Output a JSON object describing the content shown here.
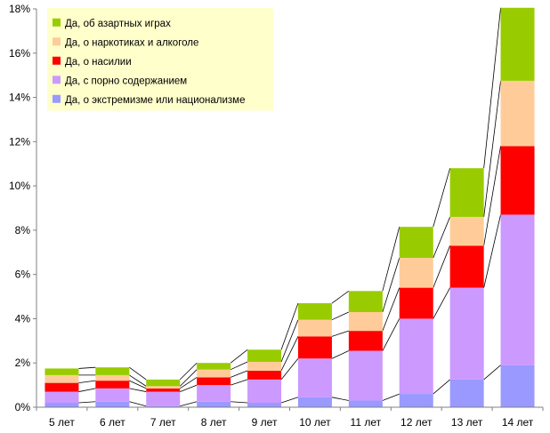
{
  "chart_data": {
    "type": "bar",
    "stacked": true,
    "categories": [
      "5 лет",
      "6 лет",
      "7 лет",
      "8 лет",
      "9 лет",
      "10 лет",
      "11 лет",
      "12 лет",
      "13 лет",
      "14 лет"
    ],
    "series": [
      {
        "name": "Да, о экстремизме или национализме",
        "color": "#9999ff",
        "values": [
          0.2,
          0.25,
          0.05,
          0.25,
          0.2,
          0.45,
          0.3,
          0.6,
          1.25,
          1.9
        ]
      },
      {
        "name": "Да, с порно содержанием",
        "color": "#cc99ff",
        "values": [
          0.5,
          0.6,
          0.65,
          0.75,
          1.05,
          1.75,
          2.25,
          3.4,
          4.15,
          6.8
        ]
      },
      {
        "name": "Да, о насилии",
        "color": "#ff0000",
        "values": [
          0.4,
          0.35,
          0.15,
          0.35,
          0.4,
          1.0,
          0.9,
          1.4,
          1.9,
          3.1
        ]
      },
      {
        "name": "Да, о наркотиках и алкоголе",
        "color": "#ffcc99",
        "values": [
          0.35,
          0.25,
          0.1,
          0.35,
          0.4,
          0.75,
          0.85,
          1.35,
          1.3,
          2.95
        ]
      },
      {
        "name": "Да, об азартных играх",
        "color": "#99cc00",
        "values": [
          0.3,
          0.35,
          0.3,
          0.3,
          0.55,
          0.75,
          0.95,
          1.4,
          2.2,
          3.3
        ]
      }
    ],
    "y_ticks": [
      "0%",
      "2%",
      "4%",
      "6%",
      "8%",
      "10%",
      "12%",
      "14%",
      "16%",
      "18%"
    ],
    "ylim": [
      0,
      18
    ],
    "y_unit": "%",
    "grid": false,
    "connector_lines": true,
    "legend_position": "top-left",
    "legend_background": "#ffffcc",
    "title": "",
    "xlabel": "",
    "ylabel": ""
  }
}
